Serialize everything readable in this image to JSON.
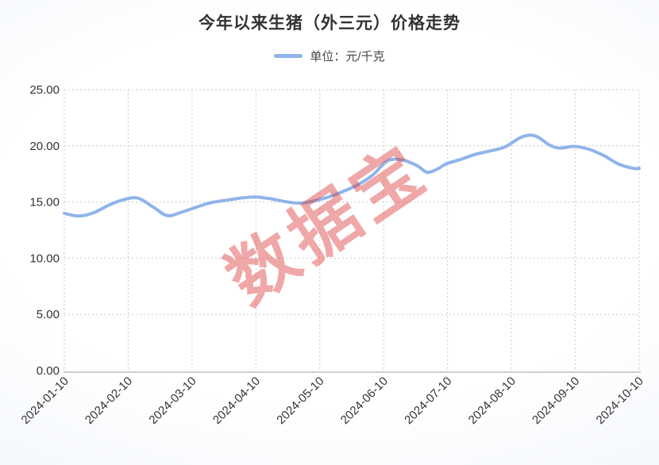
{
  "page": {
    "title": "今年以来生猪（外三元）价格走势"
  },
  "legend": {
    "label": "单位：元/千克"
  },
  "watermark": {
    "text": "数据宝"
  },
  "chart_data": {
    "type": "line",
    "title": "今年以来生猪（外三元）价格走势",
    "unit": "元/千克",
    "legend_position": "top",
    "legend": [
      {
        "label": "单位：元/千克",
        "color": "#8fb4ea"
      }
    ],
    "grid": true,
    "ylim": [
      0,
      25
    ],
    "y_tick_values": [
      0,
      5,
      10,
      15,
      20,
      25
    ],
    "y_tick_labels": [
      "0.00",
      "5.00",
      "10.00",
      "15.00",
      "20.00",
      "25.00"
    ],
    "x_tick_labels": [
      "2024-01-10",
      "2024-02-10",
      "2024-03-10",
      "2024-04-10",
      "2024-05-10",
      "2024-06-10",
      "2024-07-10",
      "2024-08-10",
      "2024-09-10",
      "2024-10-10"
    ],
    "watermark_text": "数据宝",
    "colors": {
      "line": "#8fb4ea",
      "axis_text": "#333333",
      "gridline": "#cccccc",
      "axis_line": "#cfcfcf",
      "watermark": "rgba(220,60,60,0.45)"
    },
    "series": [
      {
        "name": "单位：元/千克",
        "color": "#8fb4ea",
        "points": [
          [
            "2024-01-10",
            14.0
          ],
          [
            "2024-01-17",
            13.75
          ],
          [
            "2024-01-24",
            14.05
          ],
          [
            "2024-01-31",
            14.7
          ],
          [
            "2024-02-07",
            15.2
          ],
          [
            "2024-02-14",
            15.35
          ],
          [
            "2024-02-21",
            14.6
          ],
          [
            "2024-02-28",
            13.8
          ],
          [
            "2024-03-06",
            14.1
          ],
          [
            "2024-03-13",
            14.55
          ],
          [
            "2024-03-20",
            14.95
          ],
          [
            "2024-03-27",
            15.15
          ],
          [
            "2024-04-03",
            15.35
          ],
          [
            "2024-04-10",
            15.45
          ],
          [
            "2024-04-17",
            15.3
          ],
          [
            "2024-04-24",
            15.05
          ],
          [
            "2024-05-01",
            14.9
          ],
          [
            "2024-05-08",
            15.1
          ],
          [
            "2024-05-15",
            15.45
          ],
          [
            "2024-05-22",
            15.95
          ],
          [
            "2024-05-29",
            16.55
          ],
          [
            "2024-06-05",
            17.4
          ],
          [
            "2024-06-12",
            18.65
          ],
          [
            "2024-06-19",
            18.75
          ],
          [
            "2024-06-26",
            18.25
          ],
          [
            "2024-07-01",
            17.65
          ],
          [
            "2024-07-06",
            17.95
          ],
          [
            "2024-07-10",
            18.4
          ],
          [
            "2024-07-17",
            18.8
          ],
          [
            "2024-07-24",
            19.25
          ],
          [
            "2024-07-31",
            19.55
          ],
          [
            "2024-08-07",
            19.9
          ],
          [
            "2024-08-14",
            20.7
          ],
          [
            "2024-08-19",
            20.95
          ],
          [
            "2024-08-23",
            20.75
          ],
          [
            "2024-08-28",
            20.1
          ],
          [
            "2024-09-02",
            19.8
          ],
          [
            "2024-09-09",
            19.95
          ],
          [
            "2024-09-16",
            19.7
          ],
          [
            "2024-09-23",
            19.15
          ],
          [
            "2024-09-30",
            18.4
          ],
          [
            "2024-10-07",
            18.0
          ],
          [
            "2024-10-10",
            18.0
          ]
        ]
      }
    ]
  }
}
